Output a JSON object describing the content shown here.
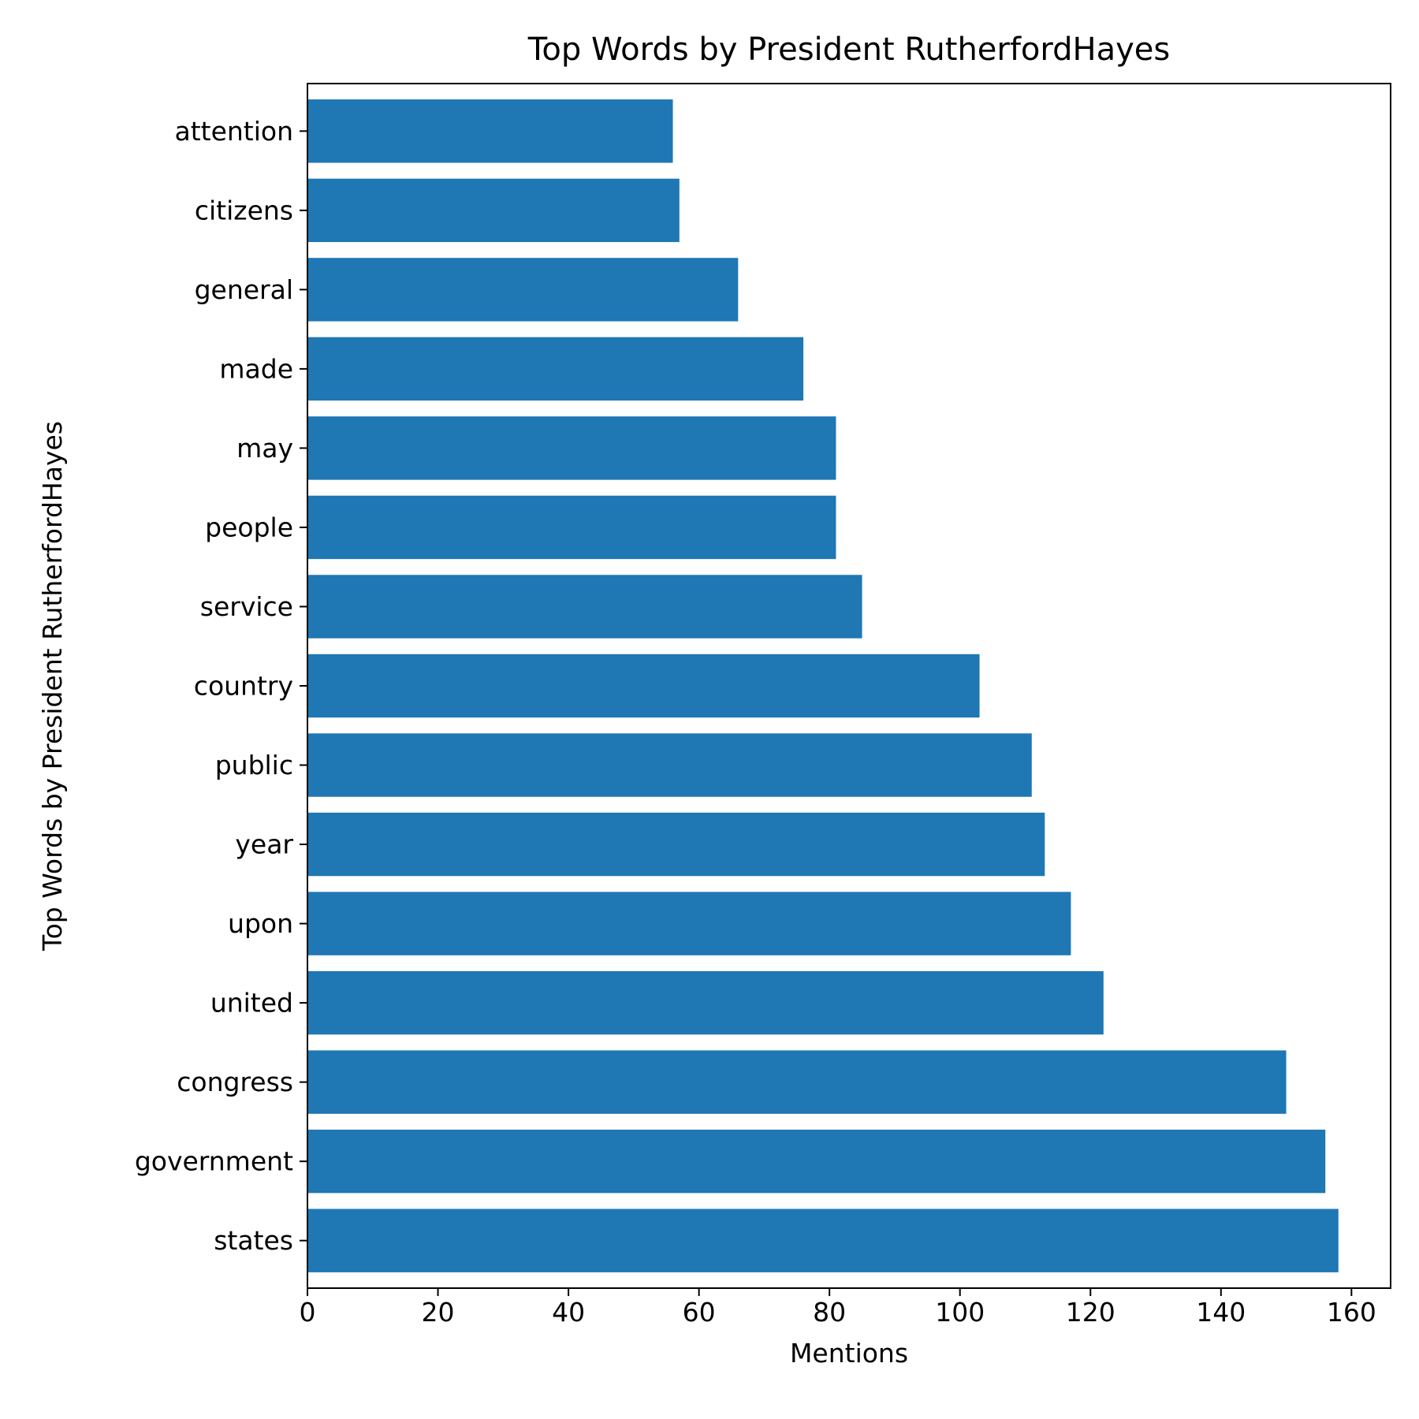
{
  "chart_data": {
    "type": "bar",
    "orientation": "horizontal",
    "title": "Top Words by President RutherfordHayes",
    "xlabel": "Mentions",
    "ylabel": "Top Words by President RutherfordHayes",
    "categories": [
      "states",
      "government",
      "congress",
      "united",
      "upon",
      "year",
      "public",
      "country",
      "service",
      "people",
      "may",
      "made",
      "general",
      "citizens",
      "attention"
    ],
    "values": [
      158,
      156,
      150,
      122,
      117,
      113,
      111,
      103,
      85,
      81,
      81,
      76,
      66,
      57,
      56
    ],
    "xlim": [
      0,
      166
    ],
    "xticks": [
      0,
      20,
      40,
      60,
      80,
      100,
      120,
      140,
      160
    ],
    "bar_color": "#1f77b4",
    "grid": false,
    "legend": "none"
  }
}
